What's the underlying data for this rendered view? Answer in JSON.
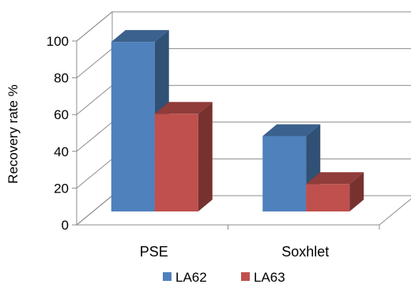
{
  "chart_data": {
    "type": "bar",
    "title": "",
    "xlabel": "",
    "ylabel": "Recovery rate %",
    "ylim": [
      0,
      100
    ],
    "yticks": [
      0,
      20,
      40,
      60,
      80,
      100
    ],
    "grid": true,
    "three_d": true,
    "legend_position": "bottom",
    "categories": [
      "PSE",
      "Soxhlet"
    ],
    "series": [
      {
        "name": "LA62",
        "values": [
          99,
          44
        ],
        "color": "#4f81bd"
      },
      {
        "name": "LA63",
        "values": [
          57,
          16
        ],
        "color": "#c0504d"
      }
    ]
  }
}
